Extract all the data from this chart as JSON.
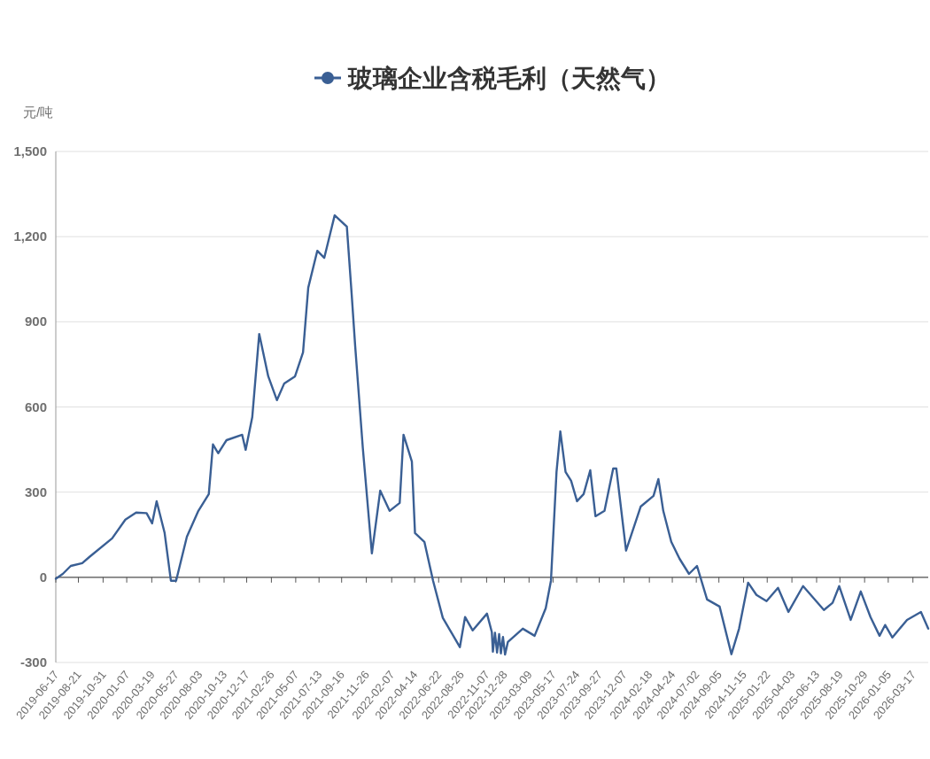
{
  "chart_data": {
    "type": "line",
    "ylabel": "元/吨",
    "legend": "top",
    "grid": "y",
    "x": [
      "2019-06-17",
      "2019-07-07",
      "2019-07-30",
      "2019-09-01",
      "2019-09-22",
      "2019-11-26",
      "2020-01-03",
      "2020-02-03",
      "2020-03-04",
      "2020-03-20",
      "2020-04-02",
      "2020-04-25",
      "2020-05-13",
      "2020-05-28",
      "2020-06-28",
      "2020-07-31",
      "2020-08-30",
      "2020-09-11",
      "2020-09-26",
      "2020-10-20",
      "2020-12-04",
      "2020-12-14",
      "2021-01-02",
      "2021-01-22",
      "2021-02-17",
      "2021-03-14",
      "2021-04-04",
      "2021-05-05",
      "2021-05-28",
      "2021-06-12",
      "2021-07-08",
      "2021-07-28",
      "2021-08-27",
      "2021-10-01",
      "2021-10-15",
      "2021-10-25",
      "2021-11-16",
      "2021-12-12",
      "2022-01-05",
      "2022-02-01",
      "2022-03-02",
      "2022-03-13",
      "2022-04-06",
      "2022-04-15",
      "2022-05-12",
      "2022-06-06",
      "2022-07-04",
      "2022-08-22",
      "2022-09-06",
      "2022-09-28",
      "2022-11-08",
      "2022-11-22",
      "2022-11-25",
      "2022-12-01",
      "2022-12-07",
      "2022-12-13",
      "2022-12-18",
      "2022-12-24",
      "2022-12-30",
      "2023-01-07",
      "2023-02-19",
      "2023-03-25",
      "2023-04-26",
      "2023-05-11",
      "2023-05-27",
      "2023-06-07",
      "2023-06-22",
      "2023-07-08",
      "2023-07-25",
      "2023-08-13",
      "2023-09-01",
      "2023-09-16",
      "2023-10-12",
      "2023-11-06",
      "2023-11-15",
      "2023-12-13",
      "2024-01-24",
      "2024-03-01",
      "2024-03-15",
      "2024-03-29",
      "2024-04-21",
      "2024-05-15",
      "2024-06-11",
      "2024-07-04",
      "2024-08-02",
      "2024-09-07",
      "2024-10-11",
      "2024-11-02",
      "2024-11-28",
      "2024-12-22",
      "2025-01-20",
      "2025-02-22",
      "2025-03-24",
      "2025-05-05",
      "2025-07-04",
      "2025-07-29",
      "2025-08-17",
      "2025-09-19",
      "2025-10-18",
      "2025-11-15",
      "2025-12-11",
      "2025-12-27",
      "2026-01-17",
      "2026-02-28",
      "2026-04-09",
      "2026-04-30"
    ],
    "series": [
      {
        "name": "玻璃企业含税毛利（天然气）",
        "color": "#3a5f94",
        "values": [
          -5,
          12,
          40,
          50,
          72,
          137,
          203,
          228,
          226,
          190,
          268,
          156,
          -12,
          -12,
          143,
          234,
          293,
          468,
          437,
          483,
          502,
          449,
          564,
          857,
          708,
          624,
          683,
          708,
          792,
          1020,
          1150,
          1125,
          1275,
          1235,
          995,
          814,
          455,
          84,
          305,
          234,
          262,
          502,
          408,
          156,
          125,
          -12,
          -143,
          -246,
          -140,
          -187,
          -128,
          -193,
          -262,
          -195,
          -265,
          -200,
          -268,
          -210,
          -272,
          -228,
          -181,
          -206,
          -109,
          -12,
          371,
          514,
          371,
          340,
          268,
          293,
          377,
          215,
          234,
          383,
          383,
          94,
          249,
          287,
          346,
          234,
          125,
          65,
          12,
          40,
          -78,
          -103,
          -271,
          -181,
          -19,
          -62,
          -84,
          -37,
          -122,
          -31,
          -115,
          -90,
          -31,
          -150,
          -50,
          -140,
          -206,
          -168,
          -212,
          -150,
          -122,
          -181
        ]
      }
    ],
    "ylim": [
      -300,
      1500
    ],
    "yticks": [
      -300,
      0,
      {
        "value": 300,
        "label": "300"
      },
      {
        "value": 600,
        "label": "600"
      },
      {
        "value": 900,
        "label": "900"
      },
      {
        "value": 1200,
        "label": "1,200"
      },
      {
        "value": 1500,
        "label": "1,500"
      }
    ],
    "xlim": [
      "2019-06-17",
      "2026-04-30"
    ],
    "xticks": [
      "2019-06-17",
      "2019-08-21",
      "2019-10-31",
      "2020-01-07",
      "2020-03-19",
      "2020-05-27",
      "2020-08-03",
      "2020-10-13",
      "2020-12-17",
      "2021-02-26",
      "2021-05-07",
      "2021-07-13",
      "2021-09-16",
      "2021-11-26",
      "2022-02-07",
      "2022-04-14",
      "2022-06-22",
      "2022-08-26",
      "2022-11-07",
      "2022-12-28",
      "2023-03-09",
      "2023-05-17",
      "2023-07-24",
      "2023-09-27",
      "2023-12-07",
      "2024-02-18",
      "2024-04-24",
      "2024-07-02",
      "2024-09-05",
      "2024-11-15",
      "2025-01-22",
      "2025-04-03",
      "2025-06-13",
      "2025-08-19",
      "2025-10-29",
      "2026-01-05",
      "2026-03-17"
    ]
  }
}
